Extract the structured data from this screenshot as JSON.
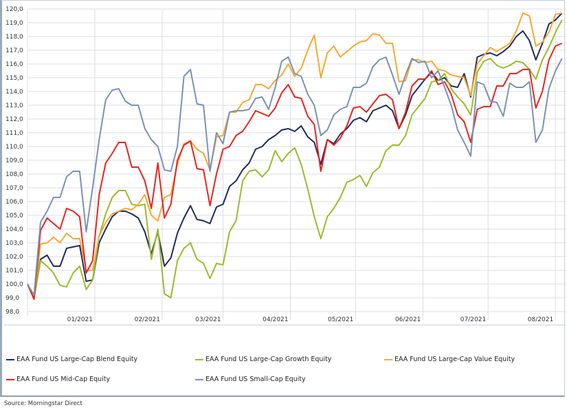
{
  "chart_data": {
    "type": "line",
    "title": "",
    "xlabel": "",
    "ylabel": "",
    "ylim": [
      98,
      120
    ],
    "yticks": [
      "98,0",
      "99,0",
      "100,0",
      "101,0",
      "102,0",
      "103,0",
      "104,0",
      "105,0",
      "106,0",
      "107,0",
      "108,0",
      "109,0",
      "110,0",
      "111,0",
      "112,0",
      "113,0",
      "114,0",
      "115,0",
      "116,0",
      "117,0",
      "118,0",
      "119,0",
      "120,0"
    ],
    "xticks": [
      {
        "label": "01/2021",
        "x": 31
      },
      {
        "label": "02/2021",
        "x": 62
      },
      {
        "label": "03/2021",
        "x": 90
      },
      {
        "label": "04/2021",
        "x": 121
      },
      {
        "label": "05/2021",
        "x": 151
      },
      {
        "label": "06/2021",
        "x": 182
      },
      {
        "label": "07/2021",
        "x": 212
      },
      {
        "label": "08/2021",
        "x": 243
      }
    ],
    "xlim": [
      0,
      248
    ],
    "grid": true,
    "legend_position": "bottom",
    "x": [
      0,
      3,
      6,
      9,
      12,
      15,
      18,
      21,
      24,
      27,
      30,
      33,
      36,
      39,
      42,
      45,
      48,
      51,
      54,
      57,
      60,
      63,
      66,
      69,
      72,
      75,
      78,
      81,
      84,
      87,
      90,
      93,
      96,
      99,
      102,
      105,
      108,
      111,
      114,
      117,
      120,
      123,
      126,
      129,
      132,
      135,
      138,
      141,
      144,
      147,
      150,
      153,
      156,
      159,
      162,
      165,
      168,
      171,
      174,
      177,
      180,
      183,
      186,
      189,
      192,
      195,
      198,
      201,
      204,
      207,
      210,
      213,
      216,
      219,
      222,
      225,
      228,
      231,
      234,
      237,
      240,
      243,
      246
    ],
    "series": [
      {
        "name": "EAA Fund US Large-Cap Blend Equity",
        "color": "#1f2a5c",
        "values": [
          100,
          99,
          101.8,
          102.1,
          101.3,
          101.3,
          102.6,
          102.7,
          102.8,
          100.2,
          100.3,
          103,
          104,
          104.9,
          105.3,
          105.3,
          105.1,
          104.8,
          103.8,
          102.2,
          103.8,
          101.3,
          101.9,
          103.7,
          104.8,
          105.7,
          104.7,
          104.6,
          104.4,
          105.6,
          105.8,
          107.1,
          107.5,
          108.3,
          108.8,
          109.8,
          110,
          110.5,
          110.8,
          111.2,
          111.3,
          111.1,
          111.5,
          110.7,
          110.3,
          108.7,
          110.5,
          110.2,
          110.9,
          111.3,
          111.9,
          112.1,
          111.8,
          112.6,
          112.8,
          113,
          112.6,
          111.3,
          112.3,
          113.7,
          114.3,
          114.9,
          115.4,
          114.8,
          115,
          114.4,
          114.3,
          115.3,
          113.6,
          116.5,
          116.7,
          116.8,
          116.6,
          116.9,
          117.3,
          118,
          118.4,
          117.7,
          116.3,
          117.5,
          118.9,
          119.2,
          119.7
        ]
      },
      {
        "name": "EAA Fund US Large-Cap Growth Equity",
        "color": "#9bbb2a",
        "values": [
          100,
          98.9,
          101.7,
          101.3,
          100.8,
          99.9,
          99.8,
          100.8,
          101.3,
          99.6,
          100.3,
          103.5,
          105.1,
          106.3,
          106.8,
          106.8,
          105.8,
          105.7,
          105.8,
          101.8,
          104,
          99.3,
          99,
          101.7,
          102.6,
          103,
          101.8,
          101.5,
          100.4,
          101.5,
          101.4,
          103.8,
          104.6,
          107.5,
          108.2,
          108.3,
          107.8,
          108.3,
          109.7,
          108.9,
          109.5,
          109.9,
          108.7,
          106.9,
          104.9,
          103.3,
          104.9,
          105.5,
          106.3,
          107.4,
          107.6,
          107.9,
          107.1,
          108.1,
          108.5,
          109.7,
          110.1,
          110.1,
          110.8,
          112.3,
          112.9,
          113.5,
          114.7,
          114.8,
          115.3,
          114.2,
          113.6,
          113.1,
          112.3,
          115.4,
          116.2,
          116.4,
          115.9,
          115.7,
          115.9,
          116.2,
          116.1,
          115.6,
          114.9,
          116.3,
          117.2,
          118.3,
          119.2
        ]
      },
      {
        "name": "EAA Fund US Large-Cap Value Equity",
        "color": "#f7a830",
        "values": [
          100,
          99,
          102.9,
          103,
          103.4,
          103,
          103.7,
          103.3,
          103.3,
          101,
          101,
          103.5,
          104.5,
          105.1,
          105.3,
          105.5,
          105.4,
          105.8,
          106.5,
          105,
          104.6,
          106.3,
          106.5,
          108.7,
          110.2,
          110.4,
          109.8,
          109.5,
          108.3,
          110.7,
          110.8,
          112.5,
          112.5,
          113.2,
          113.4,
          114.5,
          114.5,
          114.2,
          114.8,
          115.2,
          116,
          115.1,
          115.7,
          117,
          118.1,
          115,
          116.8,
          117.3,
          116.5,
          116.9,
          117.3,
          117.6,
          117.7,
          118.2,
          118.1,
          117.5,
          117.5,
          114.7,
          114.8,
          116.3,
          116.3,
          116.1,
          116.2,
          115.6,
          115.5,
          115.2,
          115.1,
          115,
          113.7,
          116,
          116.6,
          117.2,
          116.9,
          117.2,
          117.5,
          118.4,
          119.7,
          119.5,
          117.3,
          117.6,
          118.3,
          119.6,
          119.7
        ]
      },
      {
        "name": "EAA Fund US Mid-Cap Equity",
        "color": "#e8231c",
        "values": [
          100,
          98.9,
          103.9,
          104.8,
          104.4,
          104,
          105.5,
          105.3,
          104.9,
          100.8,
          101.7,
          106.5,
          108.8,
          109.5,
          110.3,
          110.3,
          108.5,
          108.5,
          107.5,
          105.5,
          108.8,
          104.8,
          105.8,
          109,
          110.1,
          110.4,
          108.4,
          108.3,
          105.7,
          108,
          109.8,
          110,
          110.8,
          111.1,
          111.8,
          112.6,
          112.4,
          112.2,
          112.8,
          113.9,
          114.5,
          113.6,
          113.5,
          112.2,
          111.6,
          108.2,
          110.5,
          110.1,
          110.6,
          111.5,
          112.8,
          112.9,
          112.5,
          113.1,
          113.7,
          113.8,
          113.4,
          111.3,
          112.5,
          114.4,
          114.9,
          114.9,
          115.5,
          114.5,
          114.7,
          113.8,
          112.3,
          111.8,
          110.3,
          112.7,
          112.9,
          112.9,
          114.4,
          114.4,
          115.3,
          115.3,
          115.6,
          115.6,
          112.8,
          114,
          116.3,
          117.3,
          117.5
        ]
      },
      {
        "name": "EAA Fund US Small-Cap Equity",
        "color": "#7c90b4",
        "values": [
          100,
          99.2,
          104.5,
          105.3,
          106.3,
          106.3,
          107.8,
          108.2,
          108.2,
          103.8,
          107,
          110.5,
          113.4,
          114.1,
          114.2,
          113.3,
          113,
          113,
          111.3,
          110.5,
          110,
          108.3,
          108.2,
          110,
          115.1,
          115.6,
          113.1,
          113,
          108.2,
          111,
          110.2,
          112.5,
          112.6,
          112.6,
          112.7,
          113.5,
          113.6,
          112.7,
          114.3,
          116.2,
          116.5,
          115.3,
          115.1,
          113.8,
          113,
          110.8,
          111.2,
          112.3,
          112.7,
          112.9,
          114.3,
          114.3,
          114.6,
          115.8,
          116.3,
          116.5,
          115.2,
          113.8,
          115.2,
          116.4,
          116.1,
          116.2,
          115,
          115.5,
          114.3,
          113,
          111.2,
          110.3,
          109.3,
          114.7,
          114.5,
          113.3,
          113.2,
          112.2,
          114.6,
          114.3,
          114.3,
          114.7,
          110.3,
          111.2,
          114.2,
          115.5,
          116.4
        ]
      }
    ]
  },
  "source": "Source: Morningstar Direct"
}
